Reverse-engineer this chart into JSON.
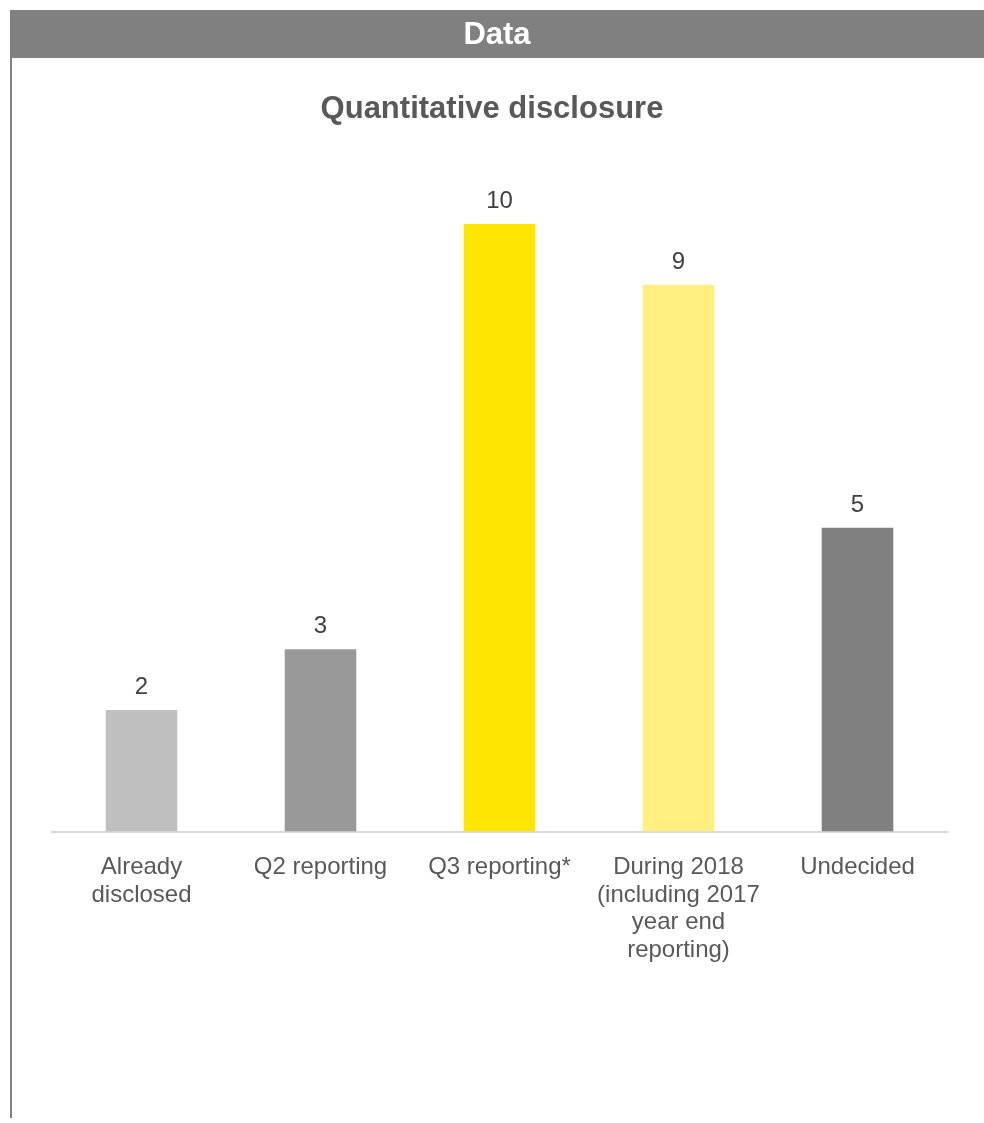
{
  "chart_data": {
    "type": "bar",
    "title": "Data",
    "subtitle": "Quantitative disclosure",
    "categories": [
      "Already disclosed",
      "Q2 reporting",
      "Q3 reporting*",
      "During 2018 (including 2017 year end reporting)",
      "Undecided"
    ],
    "values": [
      2,
      3,
      10,
      9,
      5
    ],
    "colors": [
      "#bfbfbf",
      "#999999",
      "#ffe600",
      "#fff080",
      "#808080"
    ],
    "data_labels": true,
    "tick_labels": "x"
  }
}
